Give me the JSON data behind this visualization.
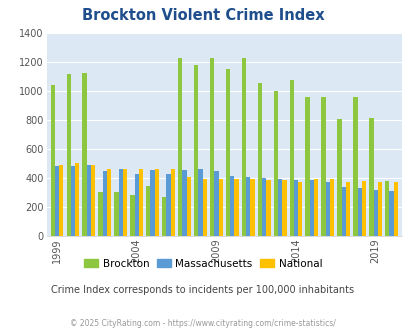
{
  "title": "Brockton Violent Crime Index",
  "subtitle": "Crime Index corresponds to incidents per 100,000 inhabitants",
  "footer": "© 2025 CityRating.com - https://www.cityrating.com/crime-statistics/",
  "years": [
    1999,
    2000,
    2001,
    2002,
    2003,
    2004,
    2005,
    2006,
    2007,
    2008,
    2009,
    2010,
    2011,
    2012,
    2013,
    2014,
    2015,
    2016,
    2017,
    2018,
    2019,
    2020
  ],
  "brockton": [
    1040,
    1115,
    1125,
    300,
    305,
    280,
    345,
    270,
    1230,
    1180,
    1225,
    1150,
    1230,
    1055,
    1000,
    1075,
    960,
    960,
    810,
    960,
    815,
    380
  ],
  "massachusetts": [
    480,
    480,
    490,
    450,
    465,
    430,
    455,
    425,
    455,
    465,
    450,
    415,
    405,
    400,
    390,
    385,
    385,
    375,
    340,
    330,
    320,
    310
  ],
  "national": [
    490,
    500,
    490,
    460,
    465,
    460,
    460,
    460,
    410,
    390,
    390,
    390,
    390,
    385,
    385,
    375,
    395,
    395,
    375,
    380,
    370,
    370
  ],
  "color_brockton": "#8dc63f",
  "color_massachusetts": "#5b9bd5",
  "color_national": "#ffc000",
  "title_color": "#1f4e8c",
  "subtitle_color": "#444444",
  "footer_color": "#999999",
  "plot_bg_color": "#dce9f5",
  "ylim": [
    0,
    1400
  ],
  "yticks": [
    0,
    200,
    400,
    600,
    800,
    1000,
    1200,
    1400
  ],
  "xtick_years": [
    1999,
    2004,
    2009,
    2014,
    2019
  ],
  "bar_width": 0.27,
  "n_years": 22
}
